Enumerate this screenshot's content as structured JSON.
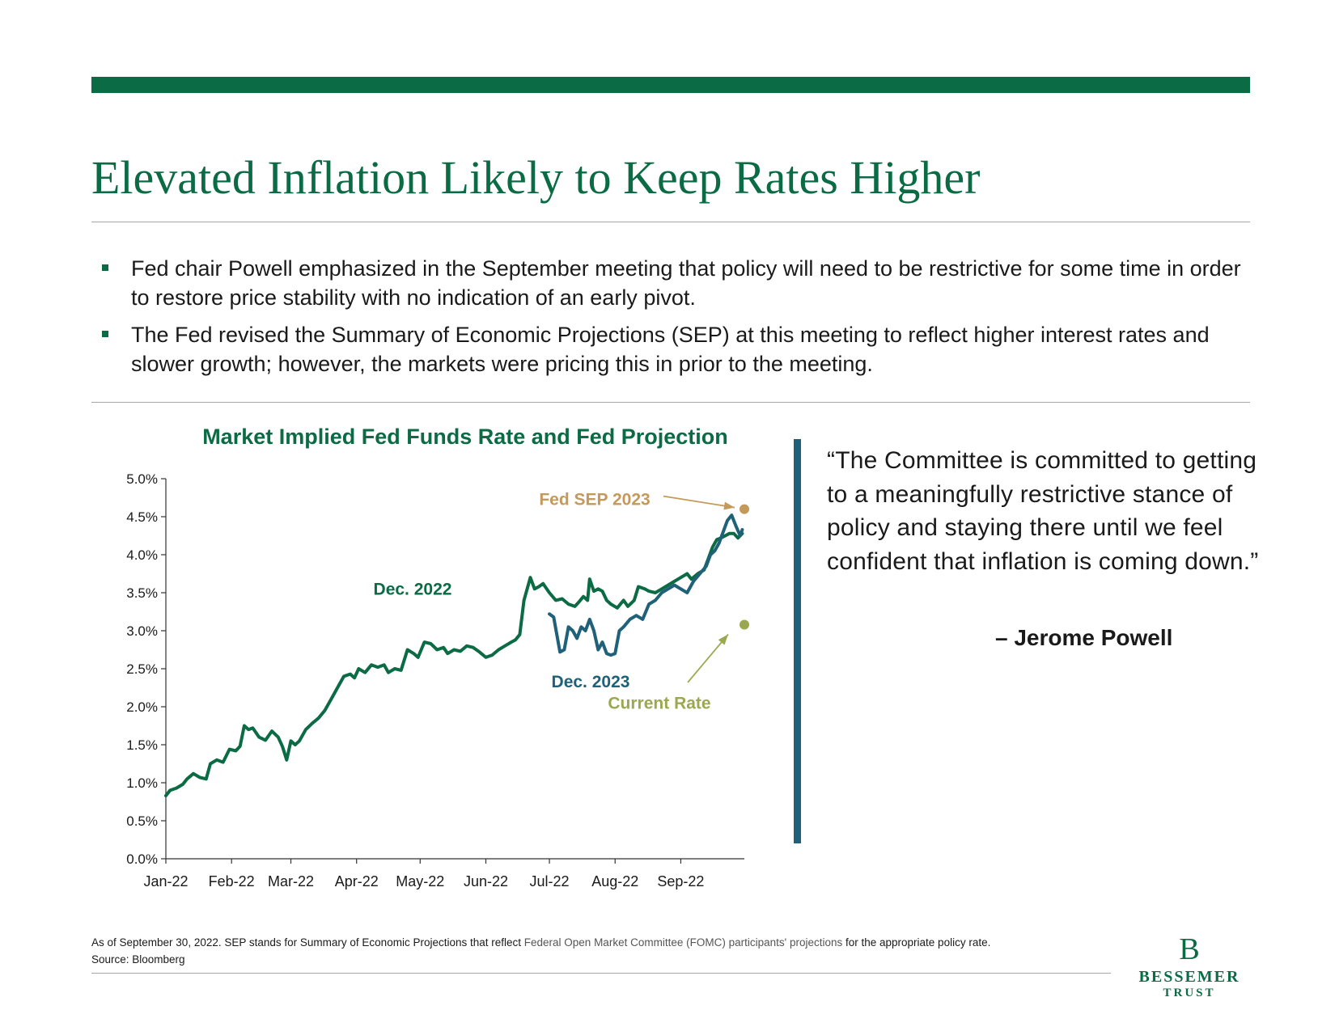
{
  "title": "Elevated Inflation Likely to Keep Rates Higher",
  "bullets": [
    "Fed chair Powell emphasized in the September meeting that policy will need to be restrictive for some time in order to restore price stability with no indication of an early pivot.",
    "The Fed revised the Summary of Economic Projections (SEP) at this meeting to reflect higher interest rates and slower growth; however, the markets were pricing this in prior to the meeting."
  ],
  "quote": {
    "text": "“The Committee is committed to getting to a meaningfully restrictive stance of policy and staying there until we feel confident that inflation is coming down.”",
    "author": "– Jerome Powell"
  },
  "footnote": {
    "line1_pre": "As of September 30, 2022. SEP stands for Summary of Economic Projections that reflect ",
    "line1_link": "Federal Open Market Committee (FOMC) participants' projections",
    "line1_post": " for the appropriate policy rate.",
    "line2": "Source: Bloomberg"
  },
  "logo": {
    "line1": "BESSEMER",
    "line2": "TRUST",
    "mark": "B"
  },
  "colors": {
    "green": "#0b6b45",
    "teal": "#1f6178",
    "gold": "#c49a5c",
    "olive": "#9ba84f"
  },
  "chart_data": {
    "type": "line",
    "title": "Market Implied Fed Funds Rate and Fed Projection",
    "ylim": [
      0,
      5
    ],
    "yticks": [
      "0.0%",
      "0.5%",
      "1.0%",
      "1.5%",
      "2.0%",
      "2.5%",
      "3.0%",
      "3.5%",
      "4.0%",
      "4.5%",
      "5.0%"
    ],
    "xticks": [
      "Jan-22",
      "Feb-22",
      "Mar-22",
      "Apr-22",
      "May-22",
      "Jun-22",
      "Jul-22",
      "Aug-22",
      "Sep-22"
    ],
    "series": [
      {
        "name": "Dec. 2022",
        "color": "#0b6b45",
        "points": [
          [
            "2022-01-01",
            0.83
          ],
          [
            "2022-01-03",
            0.9
          ],
          [
            "2022-01-06",
            0.93
          ],
          [
            "2022-01-09",
            0.98
          ],
          [
            "2022-01-11",
            1.05
          ],
          [
            "2022-01-14",
            1.12
          ],
          [
            "2022-01-17",
            1.07
          ],
          [
            "2022-01-20",
            1.05
          ],
          [
            "2022-01-22",
            1.25
          ],
          [
            "2022-01-25",
            1.3
          ],
          [
            "2022-01-28",
            1.27
          ],
          [
            "2022-01-31",
            1.44
          ],
          [
            "2022-02-03",
            1.42
          ],
          [
            "2022-02-05",
            1.48
          ],
          [
            "2022-02-07",
            1.75
          ],
          [
            "2022-02-09",
            1.7
          ],
          [
            "2022-02-11",
            1.72
          ],
          [
            "2022-02-14",
            1.6
          ],
          [
            "2022-02-17",
            1.56
          ],
          [
            "2022-02-20",
            1.68
          ],
          [
            "2022-02-23",
            1.6
          ],
          [
            "2022-02-25",
            1.48
          ],
          [
            "2022-02-27",
            1.3
          ],
          [
            "2022-03-01",
            1.55
          ],
          [
            "2022-03-03",
            1.5
          ],
          [
            "2022-03-05",
            1.55
          ],
          [
            "2022-03-08",
            1.7
          ],
          [
            "2022-03-11",
            1.78
          ],
          [
            "2022-03-14",
            1.85
          ],
          [
            "2022-03-17",
            1.95
          ],
          [
            "2022-03-20",
            2.1
          ],
          [
            "2022-03-23",
            2.25
          ],
          [
            "2022-03-26",
            2.4
          ],
          [
            "2022-03-29",
            2.43
          ],
          [
            "2022-03-31",
            2.38
          ],
          [
            "2022-04-02",
            2.5
          ],
          [
            "2022-04-05",
            2.45
          ],
          [
            "2022-04-08",
            2.55
          ],
          [
            "2022-04-11",
            2.52
          ],
          [
            "2022-04-14",
            2.55
          ],
          [
            "2022-04-16",
            2.45
          ],
          [
            "2022-04-19",
            2.5
          ],
          [
            "2022-04-22",
            2.48
          ],
          [
            "2022-04-25",
            2.75
          ],
          [
            "2022-04-28",
            2.7
          ],
          [
            "2022-04-30",
            2.65
          ],
          [
            "2022-05-03",
            2.85
          ],
          [
            "2022-05-06",
            2.83
          ],
          [
            "2022-05-09",
            2.75
          ],
          [
            "2022-05-12",
            2.78
          ],
          [
            "2022-05-14",
            2.7
          ],
          [
            "2022-05-17",
            2.75
          ],
          [
            "2022-05-20",
            2.73
          ],
          [
            "2022-05-23",
            2.8
          ],
          [
            "2022-05-26",
            2.78
          ],
          [
            "2022-05-29",
            2.72
          ],
          [
            "2022-06-01",
            2.65
          ],
          [
            "2022-06-04",
            2.68
          ],
          [
            "2022-06-07",
            2.75
          ],
          [
            "2022-06-10",
            2.8
          ],
          [
            "2022-06-13",
            2.85
          ],
          [
            "2022-06-15",
            2.88
          ],
          [
            "2022-06-17",
            2.95
          ],
          [
            "2022-06-19",
            3.4
          ],
          [
            "2022-06-22",
            3.7
          ],
          [
            "2022-06-24",
            3.55
          ],
          [
            "2022-06-26",
            3.58
          ],
          [
            "2022-06-28",
            3.62
          ],
          [
            "2022-07-01",
            3.5
          ],
          [
            "2022-07-04",
            3.4
          ],
          [
            "2022-07-07",
            3.42
          ],
          [
            "2022-07-10",
            3.35
          ],
          [
            "2022-07-13",
            3.32
          ],
          [
            "2022-07-15",
            3.38
          ],
          [
            "2022-07-17",
            3.45
          ],
          [
            "2022-07-19",
            3.4
          ],
          [
            "2022-07-20",
            3.68
          ],
          [
            "2022-07-22",
            3.52
          ],
          [
            "2022-07-24",
            3.55
          ],
          [
            "2022-07-26",
            3.52
          ],
          [
            "2022-07-28",
            3.4
          ],
          [
            "2022-07-30",
            3.35
          ],
          [
            "2022-08-02",
            3.3
          ],
          [
            "2022-08-05",
            3.4
          ],
          [
            "2022-08-07",
            3.32
          ],
          [
            "2022-08-10",
            3.4
          ],
          [
            "2022-08-12",
            3.58
          ],
          [
            "2022-08-15",
            3.55
          ],
          [
            "2022-08-17",
            3.52
          ],
          [
            "2022-08-20",
            3.5
          ],
          [
            "2022-08-23",
            3.55
          ],
          [
            "2022-08-26",
            3.6
          ],
          [
            "2022-08-29",
            3.65
          ],
          [
            "2022-09-01",
            3.7
          ],
          [
            "2022-09-04",
            3.75
          ],
          [
            "2022-09-06",
            3.68
          ],
          [
            "2022-09-09",
            3.75
          ],
          [
            "2022-09-12",
            3.8
          ],
          [
            "2022-09-14",
            3.95
          ],
          [
            "2022-09-16",
            4.1
          ],
          [
            "2022-09-18",
            4.2
          ],
          [
            "2022-09-20",
            4.22
          ],
          [
            "2022-09-22",
            4.25
          ],
          [
            "2022-09-24",
            4.28
          ],
          [
            "2022-09-26",
            4.28
          ],
          [
            "2022-09-28",
            4.22
          ],
          [
            "2022-09-30",
            4.28
          ]
        ]
      },
      {
        "name": "Dec. 2023",
        "color": "#1f6178",
        "points": [
          [
            "2022-07-01",
            3.22
          ],
          [
            "2022-07-03",
            3.18
          ],
          [
            "2022-07-06",
            2.72
          ],
          [
            "2022-07-08",
            2.75
          ],
          [
            "2022-07-10",
            3.05
          ],
          [
            "2022-07-12",
            3.0
          ],
          [
            "2022-07-14",
            2.9
          ],
          [
            "2022-07-16",
            3.05
          ],
          [
            "2022-07-18",
            3.0
          ],
          [
            "2022-07-20",
            3.15
          ],
          [
            "2022-07-22",
            3.0
          ],
          [
            "2022-07-24",
            2.75
          ],
          [
            "2022-07-26",
            2.85
          ],
          [
            "2022-07-28",
            2.7
          ],
          [
            "2022-07-30",
            2.68
          ],
          [
            "2022-08-01",
            2.7
          ],
          [
            "2022-08-03",
            3.0
          ],
          [
            "2022-08-05",
            3.05
          ],
          [
            "2022-08-08",
            3.15
          ],
          [
            "2022-08-11",
            3.2
          ],
          [
            "2022-08-14",
            3.15
          ],
          [
            "2022-08-17",
            3.35
          ],
          [
            "2022-08-20",
            3.4
          ],
          [
            "2022-08-23",
            3.5
          ],
          [
            "2022-08-26",
            3.55
          ],
          [
            "2022-08-29",
            3.6
          ],
          [
            "2022-09-01",
            3.55
          ],
          [
            "2022-09-04",
            3.5
          ],
          [
            "2022-09-07",
            3.65
          ],
          [
            "2022-09-10",
            3.75
          ],
          [
            "2022-09-13",
            3.85
          ],
          [
            "2022-09-15",
            4.0
          ],
          [
            "2022-09-17",
            4.05
          ],
          [
            "2022-09-19",
            4.15
          ],
          [
            "2022-09-21",
            4.3
          ],
          [
            "2022-09-23",
            4.45
          ],
          [
            "2022-09-25",
            4.52
          ],
          [
            "2022-09-27",
            4.38
          ],
          [
            "2022-09-29",
            4.25
          ],
          [
            "2022-09-30",
            4.33
          ]
        ]
      }
    ],
    "markers": [
      {
        "name": "Fed SEP 2023",
        "value": 4.6,
        "color": "#c49a5c"
      },
      {
        "name": "Current Rate",
        "value": 3.08,
        "color": "#9ba84f"
      }
    ],
    "annotations": [
      {
        "text": "Dec. 2022",
        "color": "#0b6b45"
      },
      {
        "text": "Dec. 2023",
        "color": "#1f6178"
      },
      {
        "text": "Fed SEP 2023",
        "color": "#c49a5c"
      },
      {
        "text": "Current Rate",
        "color": "#9ba84f"
      }
    ]
  }
}
